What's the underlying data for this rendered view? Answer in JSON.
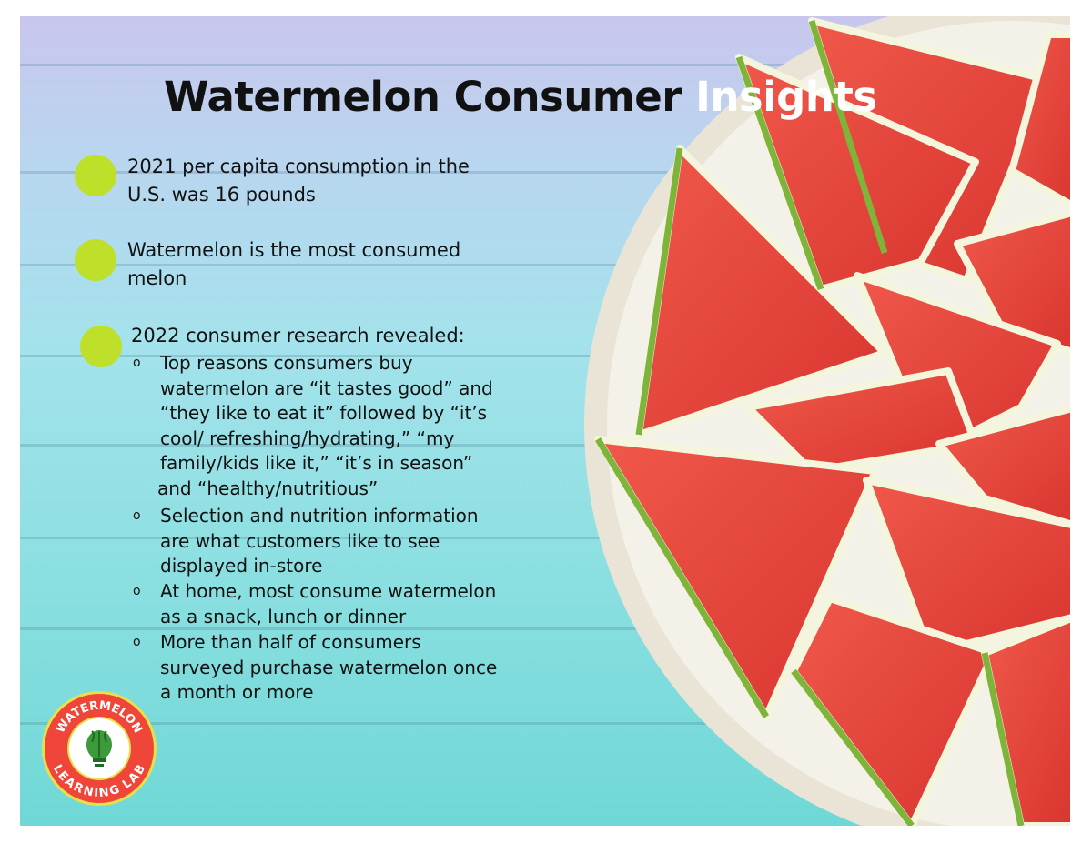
{
  "title": {
    "main": "Watermelon Consumer ",
    "highlight": "Insights"
  },
  "bullets": [
    {
      "lines": [
        "2021 per capita consumption in the",
        "U.S. was 16 pounds"
      ]
    },
    {
      "lines": [
        "Watermelon is the most consumed",
        "melon"
      ]
    },
    {
      "lines": [
        "2022 consumer research revealed:"
      ]
    }
  ],
  "sub_bullets": [
    {
      "lines": [
        "Top reasons consumers buy",
        "watermelon are “it tastes good” and",
        "“they like to eat it” followed by “it’s",
        "cool/ refreshing/hydrating,” “my",
        "family/kids like it,” “it’s in season”",
        "and “healthy/nutritious”"
      ]
    },
    {
      "lines": [
        "Selection and nutrition information",
        "are what customers like to see",
        "displayed in-store"
      ]
    },
    {
      "lines": [
        "At home, most consume watermelon",
        "as a snack, lunch or dinner"
      ]
    },
    {
      "lines": [
        "More than half of consumers",
        "surveyed purchase watermelon once",
        "a month or more"
      ]
    }
  ],
  "sub_bullet_marker": "o",
  "logo": {
    "top_text": "WATERMELON",
    "bottom_text": "LEARNING LAB"
  },
  "colors": {
    "bullet": "#bfe02a",
    "logo_red": "#f0463a",
    "flesh": "#e8473e",
    "rind": "#86b83a"
  }
}
